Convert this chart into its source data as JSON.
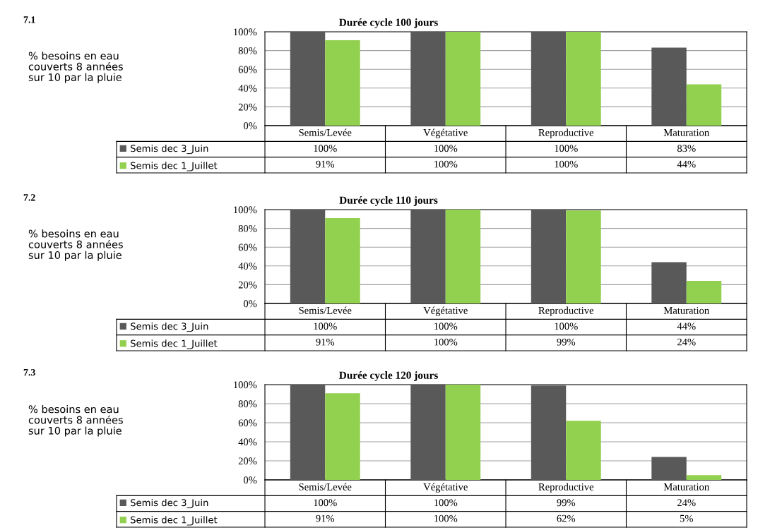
{
  "chart_data": [
    {
      "type": "bar",
      "title": "Durée cycle 100 jours",
      "ylabel": "% besoins en eau\ncouverts 8 années\nsur 10 par la pluie",
      "annotations": [
        "7.1"
      ],
      "categories": [
        "Semis/Levée",
        "Végétative",
        "Reproductive",
        "Maturation"
      ],
      "ylim": [
        0,
        100
      ],
      "yticks": [
        {
          "value": 0,
          "label": "0%"
        },
        {
          "value": 20,
          "label": "20%"
        },
        {
          "value": 40,
          "label": "40%"
        },
        {
          "value": 60,
          "label": "60%"
        },
        {
          "value": 80,
          "label": "80%"
        },
        {
          "value": 100,
          "label": "100%"
        }
      ],
      "grid": "y",
      "legend": "bottom",
      "series": [
        {
          "name": "Semis dec 3_Juin",
          "color": "#595959",
          "values": [
            100,
            100,
            100,
            83
          ],
          "value_labels": [
            "100%",
            "100%",
            "100%",
            "83%"
          ]
        },
        {
          "name": "Semis dec 1_Juillet",
          "color": "#92d050",
          "values": [
            91,
            100,
            100,
            44
          ],
          "value_labels": [
            "91%",
            "100%",
            "100%",
            "44%"
          ]
        }
      ]
    },
    {
      "type": "bar",
      "title": "Durée cycle 110 jours",
      "ylabel": "% besoins en eau\ncouverts 8 années\nsur 10 par la pluie",
      "annotations": [
        "7.2"
      ],
      "categories": [
        "Semis/Levée",
        "Végétative",
        "Reproductive",
        "Maturation"
      ],
      "ylim": [
        0,
        100
      ],
      "yticks": [
        {
          "value": 0,
          "label": "0%"
        },
        {
          "value": 20,
          "label": "20%"
        },
        {
          "value": 40,
          "label": "40%"
        },
        {
          "value": 60,
          "label": "60%"
        },
        {
          "value": 80,
          "label": "80%"
        },
        {
          "value": 100,
          "label": "100%"
        }
      ],
      "grid": "y",
      "legend": "bottom",
      "series": [
        {
          "name": "Semis dec 3_Juin",
          "color": "#595959",
          "values": [
            100,
            100,
            100,
            44
          ],
          "value_labels": [
            "100%",
            "100%",
            "100%",
            "44%"
          ]
        },
        {
          "name": "Semis dec 1_Juillet",
          "color": "#92d050",
          "values": [
            91,
            100,
            99,
            24
          ],
          "value_labels": [
            "91%",
            "100%",
            "99%",
            "24%"
          ]
        }
      ]
    },
    {
      "type": "bar",
      "title": "Durée cycle 120 jours",
      "ylabel": "% besoins en eau\ncouverts 8 années\nsur 10 par la pluie",
      "annotations": [
        "7.3"
      ],
      "categories": [
        "Semis/Levée",
        "Végétative",
        "Reproductive",
        "Maturation"
      ],
      "ylim": [
        0,
        100
      ],
      "yticks": [
        {
          "value": 0,
          "label": "0%"
        },
        {
          "value": 20,
          "label": "20%"
        },
        {
          "value": 40,
          "label": "40%"
        },
        {
          "value": 60,
          "label": "60%"
        },
        {
          "value": 80,
          "label": "80%"
        },
        {
          "value": 100,
          "label": "100%"
        }
      ],
      "grid": "y",
      "legend": "bottom",
      "series": [
        {
          "name": "Semis dec 3_Juin",
          "color": "#595959",
          "values": [
            100,
            100,
            99,
            24
          ],
          "value_labels": [
            "100%",
            "100%",
            "99%",
            "24%"
          ]
        },
        {
          "name": "Semis dec 1_Juillet",
          "color": "#92d050",
          "values": [
            91,
            100,
            62,
            5
          ],
          "value_labels": [
            "91%",
            "100%",
            "62%",
            "5%"
          ]
        }
      ]
    }
  ]
}
